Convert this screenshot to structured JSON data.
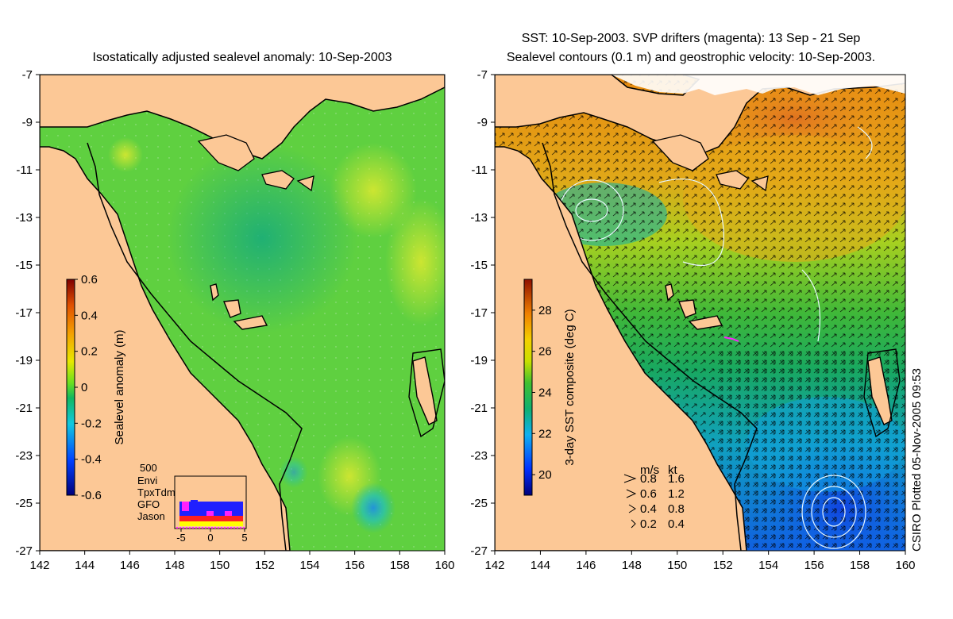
{
  "titles": {
    "left": "Isostatically adjusted sealevel anomaly: 10-Sep-2003",
    "right_line1": "SST: 10-Sep-2003. SVP drifters (magenta): 13 Sep - 21 Sep",
    "right_line2": "Sealevel contours (0.1 m) and geostrophic velocity: 10-Sep-2003."
  },
  "credit": "CSIRO Plotted 05-Nov-2005 09:53",
  "axes": {
    "x_ticks": [
      "142",
      "144",
      "146",
      "148",
      "150",
      "152",
      "154",
      "156",
      "158",
      "160"
    ],
    "y_ticks": [
      "-7",
      "-9",
      "-11",
      "-13",
      "-15",
      "-17",
      "-19",
      "-21",
      "-23",
      "-25",
      "-27"
    ],
    "x_range": [
      142,
      160
    ],
    "y_range": [
      -27,
      -7
    ]
  },
  "left_colorbar": {
    "label": "Sealevel anomaly (m)",
    "ticks": [
      "0.6",
      "0.4",
      "0.2",
      "0",
      "-0.2",
      "-0.4",
      "-0.6"
    ],
    "range": [
      -0.6,
      0.6
    ]
  },
  "right_colorbar": {
    "label": "3-day SST composite (deg C)",
    "ticks": [
      "28",
      "26",
      "24",
      "22",
      "20"
    ],
    "range": [
      19,
      29.5
    ]
  },
  "satellite_inset": {
    "count_label": "500",
    "missions": [
      {
        "name": "Envi",
        "color": "#2020ff"
      },
      {
        "name": "TpxTdm",
        "color": "#ff20ff"
      },
      {
        "name": "GFO",
        "color": "#ff2020"
      },
      {
        "name": "Jason",
        "color": "#ffff00"
      }
    ],
    "x_ticks": [
      "-5",
      "0",
      "5"
    ]
  },
  "velocity_legend": {
    "units": [
      "m/s",
      "kt"
    ],
    "rows": [
      {
        "ms": "0.8",
        "kt": "1.6"
      },
      {
        "ms": "0.6",
        "kt": "1.2"
      },
      {
        "ms": "0.4",
        "kt": "0.8"
      },
      {
        "ms": "0.2",
        "kt": "0.4"
      }
    ]
  },
  "colors": {
    "land": "#fcc896",
    "coast": "#000000"
  }
}
